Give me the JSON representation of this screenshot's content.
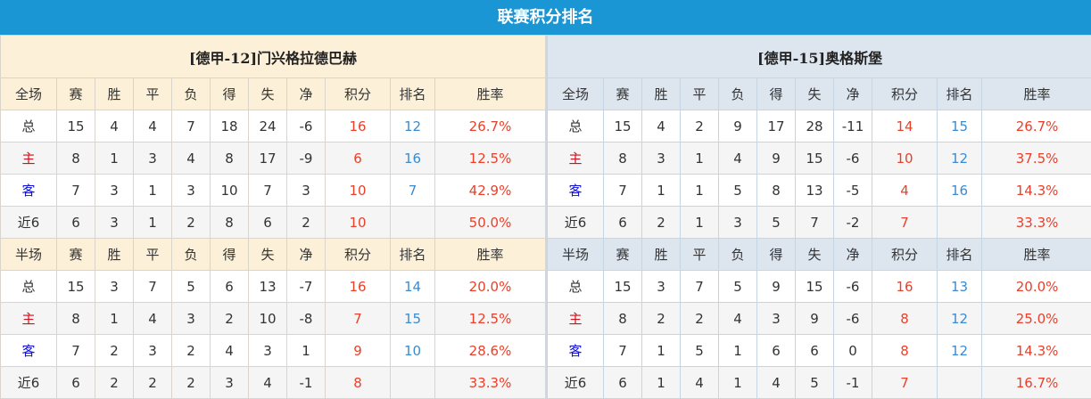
{
  "title": "联赛积分排名",
  "colors": {
    "title_bg": "#1a96d4",
    "home_header_bg": "#fcf0d9",
    "away_header_bg": "#dde6ef",
    "points": "#e8402a",
    "rank": "#3a8bd0"
  },
  "teams": [
    {
      "name": "[德甲-12]门兴格拉德巴赫",
      "sections": [
        {
          "headers": [
            "全场",
            "赛",
            "胜",
            "平",
            "负",
            "得",
            "失",
            "净",
            "积分",
            "排名",
            "胜率"
          ],
          "rows": [
            [
              "总",
              "15",
              "4",
              "4",
              "7",
              "18",
              "24",
              "-6",
              "16",
              "12",
              "26.7%"
            ],
            [
              "主",
              "8",
              "1",
              "3",
              "4",
              "8",
              "17",
              "-9",
              "6",
              "16",
              "12.5%"
            ],
            [
              "客",
              "7",
              "3",
              "1",
              "3",
              "10",
              "7",
              "3",
              "10",
              "7",
              "42.9%"
            ],
            [
              "近6",
              "6",
              "3",
              "1",
              "2",
              "8",
              "6",
              "2",
              "10",
              "",
              "50.0%"
            ]
          ]
        },
        {
          "headers": [
            "半场",
            "赛",
            "胜",
            "平",
            "负",
            "得",
            "失",
            "净",
            "积分",
            "排名",
            "胜率"
          ],
          "rows": [
            [
              "总",
              "15",
              "3",
              "7",
              "5",
              "6",
              "13",
              "-7",
              "16",
              "14",
              "20.0%"
            ],
            [
              "主",
              "8",
              "1",
              "4",
              "3",
              "2",
              "10",
              "-8",
              "7",
              "15",
              "12.5%"
            ],
            [
              "客",
              "7",
              "2",
              "3",
              "2",
              "4",
              "3",
              "1",
              "9",
              "10",
              "28.6%"
            ],
            [
              "近6",
              "6",
              "2",
              "2",
              "2",
              "3",
              "4",
              "-1",
              "8",
              "",
              "33.3%"
            ]
          ]
        }
      ]
    },
    {
      "name": "[德甲-15]奥格斯堡",
      "sections": [
        {
          "headers": [
            "全场",
            "赛",
            "胜",
            "平",
            "负",
            "得",
            "失",
            "净",
            "积分",
            "排名",
            "胜率"
          ],
          "rows": [
            [
              "总",
              "15",
              "4",
              "2",
              "9",
              "17",
              "28",
              "-11",
              "14",
              "15",
              "26.7%"
            ],
            [
              "主",
              "8",
              "3",
              "1",
              "4",
              "9",
              "15",
              "-6",
              "10",
              "12",
              "37.5%"
            ],
            [
              "客",
              "7",
              "1",
              "1",
              "5",
              "8",
              "13",
              "-5",
              "4",
              "16",
              "14.3%"
            ],
            [
              "近6",
              "6",
              "2",
              "1",
              "3",
              "5",
              "7",
              "-2",
              "7",
              "",
              "33.3%"
            ]
          ]
        },
        {
          "headers": [
            "半场",
            "赛",
            "胜",
            "平",
            "负",
            "得",
            "失",
            "净",
            "积分",
            "排名",
            "胜率"
          ],
          "rows": [
            [
              "总",
              "15",
              "3",
              "7",
              "5",
              "9",
              "15",
              "-6",
              "16",
              "13",
              "20.0%"
            ],
            [
              "主",
              "8",
              "2",
              "2",
              "4",
              "3",
              "9",
              "-6",
              "8",
              "12",
              "25.0%"
            ],
            [
              "客",
              "7",
              "1",
              "5",
              "1",
              "6",
              "6",
              "0",
              "8",
              "12",
              "14.3%"
            ],
            [
              "近6",
              "6",
              "1",
              "4",
              "1",
              "4",
              "5",
              "-1",
              "7",
              "",
              "16.7%"
            ]
          ]
        }
      ]
    }
  ]
}
